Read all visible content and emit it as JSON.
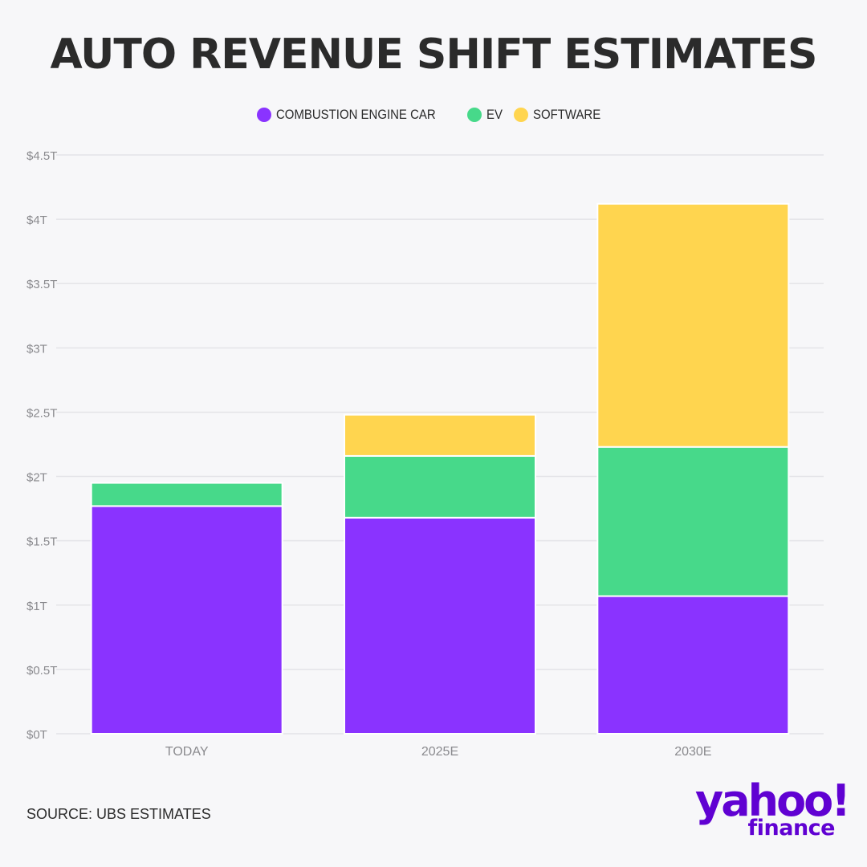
{
  "title": "AUTO REVENUE SHIFT ESTIMATES",
  "source": "SOURCE: UBS ESTIMATES",
  "logo": {
    "top": "yahoo!",
    "bottom": "finance"
  },
  "colors": {
    "combustion": "#8a33ff",
    "ev": "#47d98a",
    "software": "#ffd54f",
    "text": "#2b2b2b",
    "grid": "#e4e4e8",
    "brand": "#6001d2"
  },
  "chart_data": {
    "type": "bar",
    "stacked": true,
    "categories": [
      "TODAY",
      "2025E",
      "2030E"
    ],
    "series": [
      {
        "name": "COMBUSTION ENGINE CAR",
        "values": [
          1.77,
          1.68,
          1.07
        ]
      },
      {
        "name": "EV",
        "values": [
          0.18,
          0.48,
          1.16
        ]
      },
      {
        "name": "SOFTWARE",
        "values": [
          0,
          0.32,
          1.89
        ]
      }
    ],
    "ylim": [
      0,
      4.5
    ],
    "yticks": [
      0,
      0.5,
      1,
      1.5,
      2,
      2.5,
      3,
      3.5,
      4,
      4.5
    ],
    "ytick_labels": [
      "$0T",
      "$0.5T",
      "$1T",
      "$1.5T",
      "$2T",
      "$2.5T",
      "$3T",
      "$3.5T",
      "$4T",
      "$4.5T"
    ],
    "xlabel": "",
    "ylabel": "",
    "grid": true,
    "legend_position": "top-center"
  }
}
